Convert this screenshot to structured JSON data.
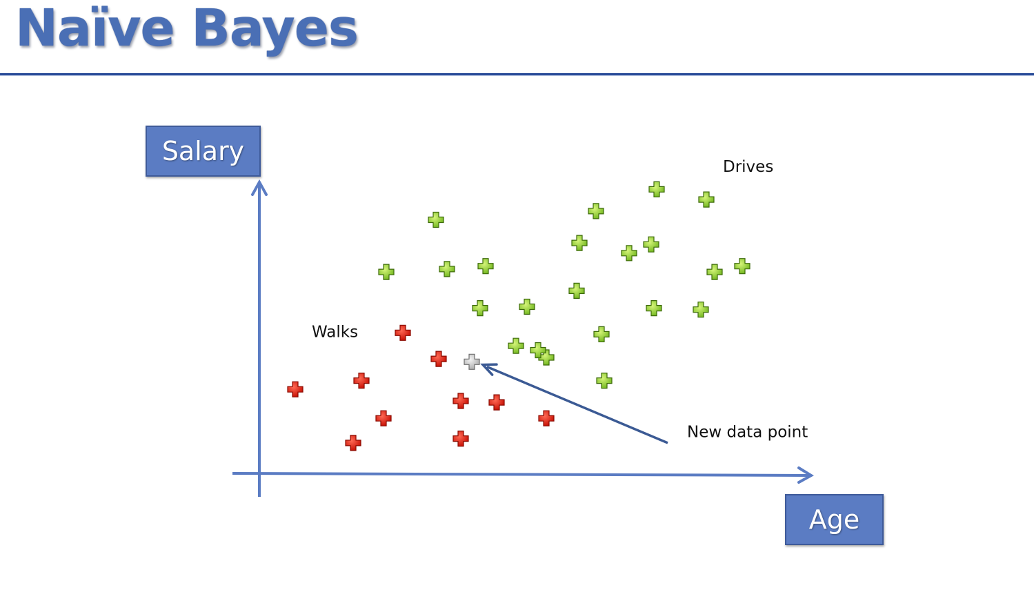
{
  "slide": {
    "title": "Naïve Bayes"
  },
  "chart_data": {
    "type": "scatter",
    "xlabel": "Age",
    "ylabel": "Salary",
    "xlim": [
      0,
      100
    ],
    "ylim": [
      0,
      100
    ],
    "grid": false,
    "series": [
      {
        "name": "Walks",
        "color": "#e0180c",
        "x": [
          6.5,
          18.5,
          17,
          22.5,
          26,
          32.5,
          36.5,
          36.5,
          43,
          52
        ],
        "y": [
          29,
          32,
          10.5,
          19,
          48.5,
          39.5,
          25,
          12,
          24.5,
          19
        ]
      },
      {
        "name": "Drives",
        "color": "#8fd02a",
        "x": [
          23,
          32,
          34,
          41,
          40,
          46.5,
          48.5,
          52,
          58,
          57.5,
          61,
          62,
          67,
          71.5,
          72,
          71,
          81,
          82.5,
          87.5,
          80,
          62.5,
          50.5
        ],
        "y": [
          69.5,
          87.5,
          70.5,
          71.5,
          57,
          44,
          57.5,
          40,
          79.5,
          63,
          90.5,
          48,
          76,
          57,
          98,
          79,
          94.5,
          69.5,
          71.5,
          56.5,
          32,
          42.5
        ]
      },
      {
        "name": "New data point",
        "color": "#d0d0d0",
        "x": [
          38.5
        ],
        "y": [
          38.5
        ]
      }
    ],
    "annotations": [
      {
        "text": "Walks",
        "x": 9.5,
        "y": 47,
        "anchor": "start"
      },
      {
        "text": "Drives",
        "x": 84,
        "y": 104,
        "anchor": "start"
      },
      {
        "text": "New data point",
        "x": 77.5,
        "y": 12.5,
        "anchor": "start"
      }
    ],
    "arrow": {
      "from": [
        74,
        10.5
      ],
      "to": [
        40.5,
        37.5
      ],
      "color": "#3b5a94"
    }
  }
}
